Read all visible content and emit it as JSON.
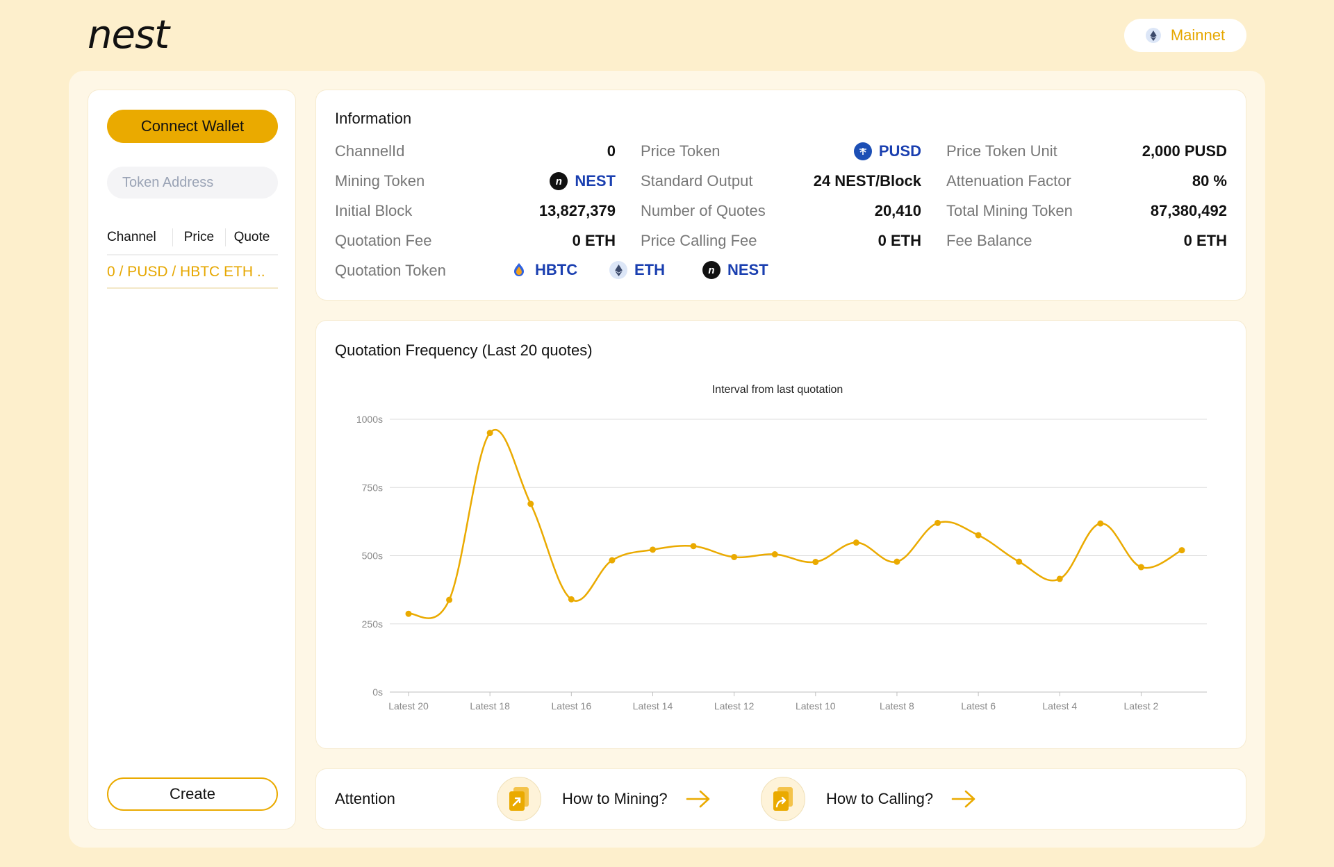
{
  "header": {
    "logo": "nest",
    "network": {
      "label": "Mainnet",
      "icon": "eth-icon"
    }
  },
  "sidebar": {
    "connect_label": "Connect Wallet",
    "token_input": {
      "placeholder": "Token Address",
      "value": ""
    },
    "list_headers": [
      "Channel",
      "Price",
      "Quote"
    ],
    "channels": [
      {
        "label": "0 / PUSD / HBTC ETH .."
      }
    ],
    "create_label": "Create"
  },
  "information": {
    "title": "Information",
    "col1": [
      {
        "label": "ChannelId",
        "value": "0"
      },
      {
        "label": "Mining Token",
        "value": "NEST",
        "icon": "nest-icon"
      },
      {
        "label": "Initial Block",
        "value": "13,827,379"
      },
      {
        "label": "Quotation Fee",
        "value": "0 ETH"
      }
    ],
    "col2": [
      {
        "label": "Price Token",
        "value": "PUSD",
        "icon": "pusd-icon"
      },
      {
        "label": "Standard Output",
        "value": "24 NEST/Block"
      },
      {
        "label": "Number of Quotes",
        "value": "20,410"
      },
      {
        "label": "Price Calling Fee",
        "value": "0 ETH"
      }
    ],
    "col3": [
      {
        "label": "Price Token Unit",
        "value": "2,000 PUSD"
      },
      {
        "label": "Attenuation Factor",
        "value": "80 %"
      },
      {
        "label": "Total Mining Token",
        "value": "87,380,492"
      },
      {
        "label": "Fee Balance",
        "value": "0 ETH"
      }
    ],
    "quotation_token_label": "Quotation Token",
    "quotation_tokens": [
      {
        "name": "HBTC",
        "icon": "hbtc-icon"
      },
      {
        "name": "ETH",
        "icon": "eth-icon"
      },
      {
        "name": "NEST",
        "icon": "nest-icon"
      }
    ]
  },
  "frequency": {
    "title": "Quotation Frequency (Last 20 quotes)"
  },
  "chart_data": {
    "type": "line",
    "title": "Interval from last quotation",
    "x": [
      "Latest 20",
      "Latest 19",
      "Latest 18",
      "Latest 17",
      "Latest 16",
      "Latest 15",
      "Latest 14",
      "Latest 13",
      "Latest 12",
      "Latest 11",
      "Latest 10",
      "Latest 9",
      "Latest 8",
      "Latest 7",
      "Latest 6",
      "Latest 5",
      "Latest 4",
      "Latest 3",
      "Latest 2",
      "Latest 1"
    ],
    "x_tick_labels": [
      "Latest 20",
      "Latest 18",
      "Latest 16",
      "Latest 14",
      "Latest 12",
      "Latest 10",
      "Latest 8",
      "Latest 6",
      "Latest 4",
      "Latest 2"
    ],
    "series": [
      {
        "values": [
          287,
          338,
          950,
          690,
          340,
          483,
          522,
          535,
          495,
          505,
          477,
          548,
          478,
          620,
          575,
          478,
          415,
          618,
          458,
          520
        ]
      }
    ],
    "y_ticks": [
      "0s",
      "250s",
      "500s",
      "750s",
      "1000s"
    ],
    "ylim": [
      0,
      1000
    ],
    "grid": true,
    "smooth": true,
    "color": "#EAAA00"
  },
  "attention": {
    "title": "Attention",
    "links": [
      {
        "label": "How to Mining?",
        "icon": "mining-doc-icon"
      },
      {
        "label": "How to Calling?",
        "icon": "calling-doc-icon"
      }
    ]
  }
}
